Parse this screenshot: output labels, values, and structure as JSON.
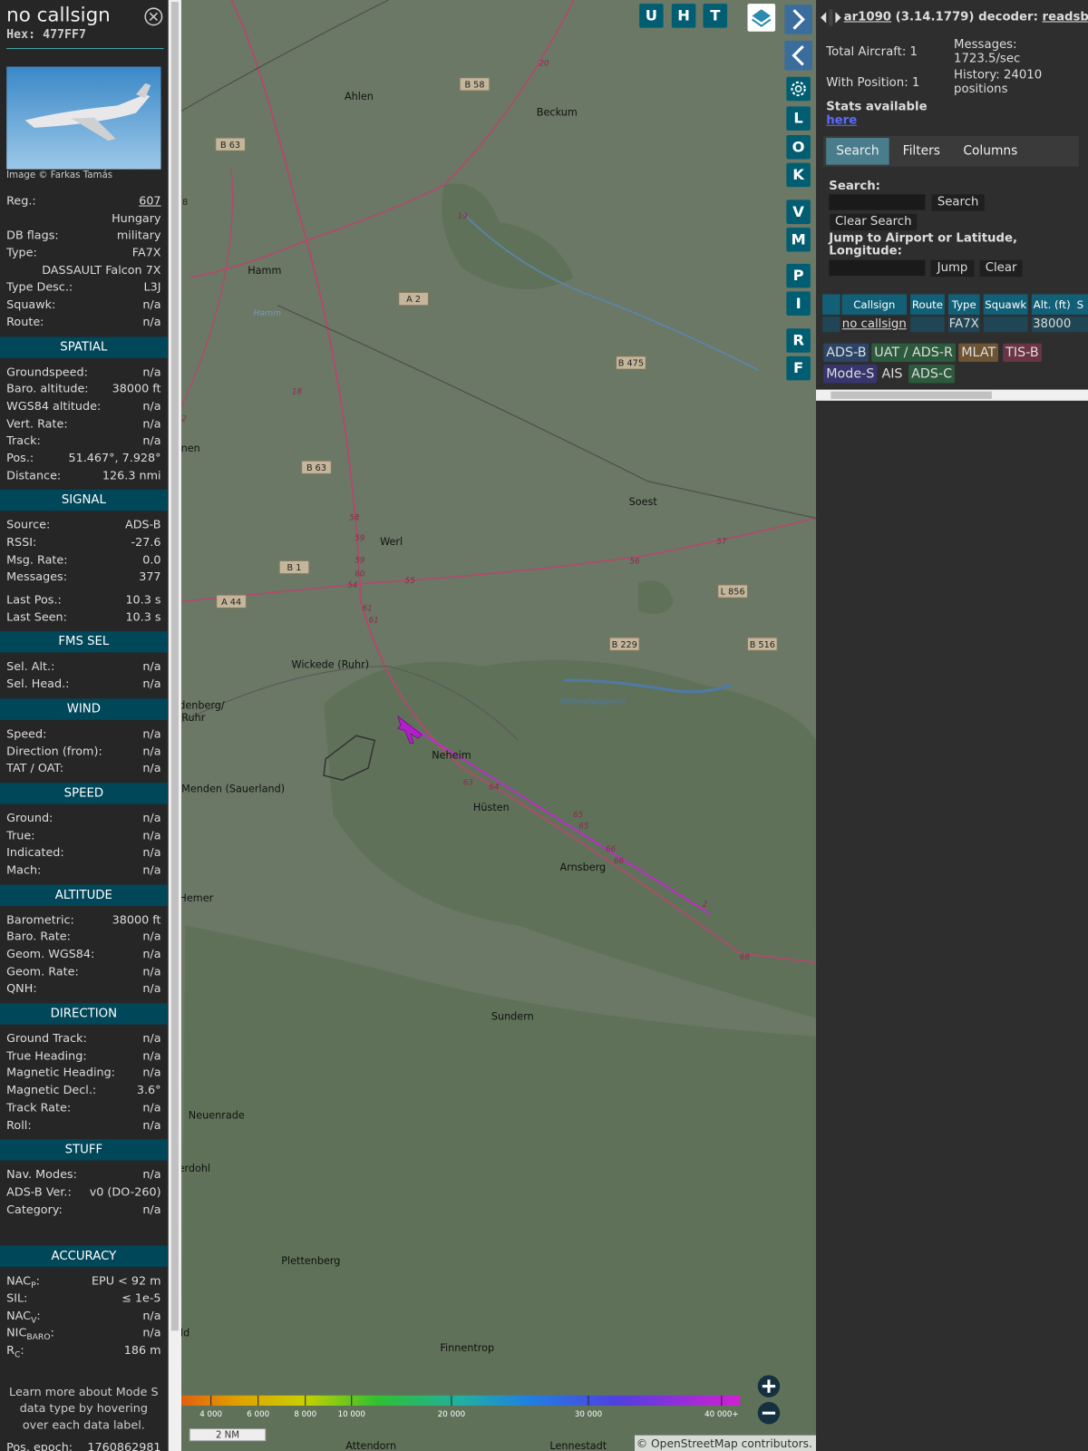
{
  "sidebar": {
    "title": "no callsign",
    "hex_label": "Hex:",
    "hex": "477FF7",
    "photo_credit": "Image © Farkas Tamás",
    "rows": [
      {
        "label": "Reg.:",
        "value": "607",
        "link": true
      },
      {
        "value": "Hungary"
      },
      {
        "label": "DB flags:",
        "value": "military"
      },
      {
        "label": "Type:",
        "value": "FA7X"
      },
      {
        "value": "DASSAULT Falcon 7X"
      },
      {
        "label": "Type Desc.:",
        "value": "L3J"
      },
      {
        "label": "Squawk:",
        "value": "n/a"
      },
      {
        "label": "Route:",
        "value": "n/a"
      }
    ],
    "sections": [
      {
        "heading": "SPATIAL",
        "rows": [
          {
            "label": "Groundspeed:",
            "value": "n/a"
          },
          {
            "label": "Baro. altitude:",
            "value": "38000 ft"
          },
          {
            "label": "WGS84 altitude:",
            "value": "n/a"
          },
          {
            "label": "Vert. Rate:",
            "value": "n/a"
          },
          {
            "label": "Track:",
            "value": "n/a"
          },
          {
            "label": "Pos.:",
            "value": "51.467°, 7.928°"
          },
          {
            "label": "Distance:",
            "value": "126.3 nmi"
          }
        ]
      },
      {
        "heading": "SIGNAL",
        "rows": [
          {
            "label": "Source:",
            "value": "ADS-B"
          },
          {
            "label": "RSSI:",
            "value": "-27.6"
          },
          {
            "label": "Msg. Rate:",
            "value": "0.0"
          },
          {
            "label": "Messages:",
            "value": "377"
          },
          {
            "label": "Last Pos.:",
            "value": "10.3 s"
          },
          {
            "label": "Last Seen:",
            "value": "10.3 s"
          }
        ]
      },
      {
        "heading": "FMS SEL",
        "rows": [
          {
            "label": "Sel. Alt.:",
            "value": "n/a"
          },
          {
            "label": "Sel. Head.:",
            "value": "n/a"
          }
        ]
      },
      {
        "heading": "WIND",
        "rows": [
          {
            "label": "Speed:",
            "value": "n/a"
          },
          {
            "label": "Direction (from):",
            "value": "n/a"
          },
          {
            "label": "TAT / OAT:",
            "value": "n/a"
          }
        ]
      },
      {
        "heading": "SPEED",
        "rows": [
          {
            "label": "Ground:",
            "value": "n/a"
          },
          {
            "label": "True:",
            "value": "n/a"
          },
          {
            "label": "Indicated:",
            "value": "n/a"
          },
          {
            "label": "Mach:",
            "value": "n/a"
          }
        ]
      },
      {
        "heading": "ALTITUDE",
        "rows": [
          {
            "label": "Barometric:",
            "value": "38000 ft"
          },
          {
            "label": "Baro. Rate:",
            "value": "n/a"
          },
          {
            "label": "Geom. WGS84:",
            "value": "n/a"
          },
          {
            "label": "Geom. Rate:",
            "value": "n/a"
          },
          {
            "label": "QNH:",
            "value": "n/a"
          }
        ]
      },
      {
        "heading": "DIRECTION",
        "rows": [
          {
            "label": "Ground Track:",
            "value": "n/a"
          },
          {
            "label": "True Heading:",
            "value": "n/a"
          },
          {
            "label": "Magnetic Heading:",
            "value": "n/a"
          },
          {
            "label": "Magnetic Decl.:",
            "value": "3.6°"
          },
          {
            "label": "Track Rate:",
            "value": "n/a"
          },
          {
            "label": "Roll:",
            "value": "n/a"
          }
        ]
      },
      {
        "heading": "STUFF",
        "rows": [
          {
            "label": "Nav. Modes:",
            "value": "n/a"
          },
          {
            "label": "ADS-B Ver.:",
            "value": "v0 (DO-260)"
          },
          {
            "label": "Category:",
            "value": "n/a"
          }
        ]
      },
      {
        "heading": "ACCURACY",
        "rows": [
          {
            "label": "NAC",
            "sub": "P",
            "after": ":",
            "value": "EPU < 92 m"
          },
          {
            "label": "SIL:",
            "value": "≤ 1e-5"
          },
          {
            "label": "NAC",
            "sub": "V",
            "after": ":",
            "value": "n/a"
          },
          {
            "label": "NIC",
            "sub": "BARO",
            "after": ":",
            "value": "n/a"
          },
          {
            "label": "R",
            "sub": "C",
            "after": ":",
            "value": "186 m"
          }
        ]
      }
    ],
    "note": "Learn more about Mode S data type by hovering over each data label.",
    "epoch_label": "Pos. epoch:",
    "epoch": "1760862981"
  },
  "map": {
    "buttons_top": [
      "U",
      "H",
      "T"
    ],
    "buttons_side": [
      "L",
      "O",
      "K",
      "V",
      "M",
      "P",
      "I",
      "R",
      "F"
    ],
    "labels": [
      "Ahlen",
      "Beckum",
      "Hamm",
      "Soest",
      "Werl",
      "Wickede (Ruhr)",
      "Neheim",
      "Hüsten",
      "Arnsberg",
      "Menden (Sauerland)",
      "Hemer",
      "Sundern",
      "Neuenrade",
      "Plettenberg",
      "Finnentrop",
      "Attendorn",
      "Lennestadt",
      "Möhnetalsperre",
      "denberg/",
      "Ruhr",
      "nen",
      "erdohl",
      "ld",
      "Hamm"
    ],
    "road_labels": [
      "B 58",
      "B 63",
      "B 63",
      "A 2",
      "B 475",
      "B 1",
      "A 44",
      "L 856",
      "B 229",
      "B 516",
      "8"
    ],
    "km_labels": [
      "20",
      "19",
      "18",
      "58",
      "59",
      "59",
      "60",
      "54",
      "55",
      "56",
      "57",
      "61",
      "61",
      "63",
      "64",
      "65",
      "65",
      "66",
      "66",
      "68",
      "2",
      "2"
    ],
    "colorbar_ticks": [
      "4 000",
      "6 000",
      "8 000",
      "10 000",
      "20 000",
      "30 000",
      "40 000+"
    ],
    "scale": "2 NM",
    "attribution": "© OpenStreetMap contributors."
  },
  "panel": {
    "app": "ar1090",
    "version": "(3.14.1779) decoder:",
    "decoder": "readsb",
    "stats": [
      "Total Aircraft: 1",
      "Messages: 1723.5/sec",
      "With Position: 1",
      "History: 24010 positions"
    ],
    "stats_note": "Stats available",
    "stats_link": "here",
    "tabs": [
      "Search",
      "Filters",
      "Columns"
    ],
    "search_label": "Search:",
    "search_button": "Search",
    "clear_search": "Clear Search",
    "jump_label": "Jump to Airport or Latitude, Longitude:",
    "jump_button": "Jump",
    "clear_button": "Clear",
    "table": {
      "headers": [
        "Callsign",
        "Route",
        "Type",
        "Squawk",
        "Alt. (ft)",
        "S"
      ],
      "rows": [
        [
          "no callsign",
          null,
          "FA7X",
          null,
          "38000",
          null
        ]
      ]
    },
    "legend": [
      "ADS-B",
      "UAT / ADS-R",
      "MLAT",
      "TIS-B",
      "Mode-S",
      "AIS",
      "ADS-C"
    ]
  }
}
